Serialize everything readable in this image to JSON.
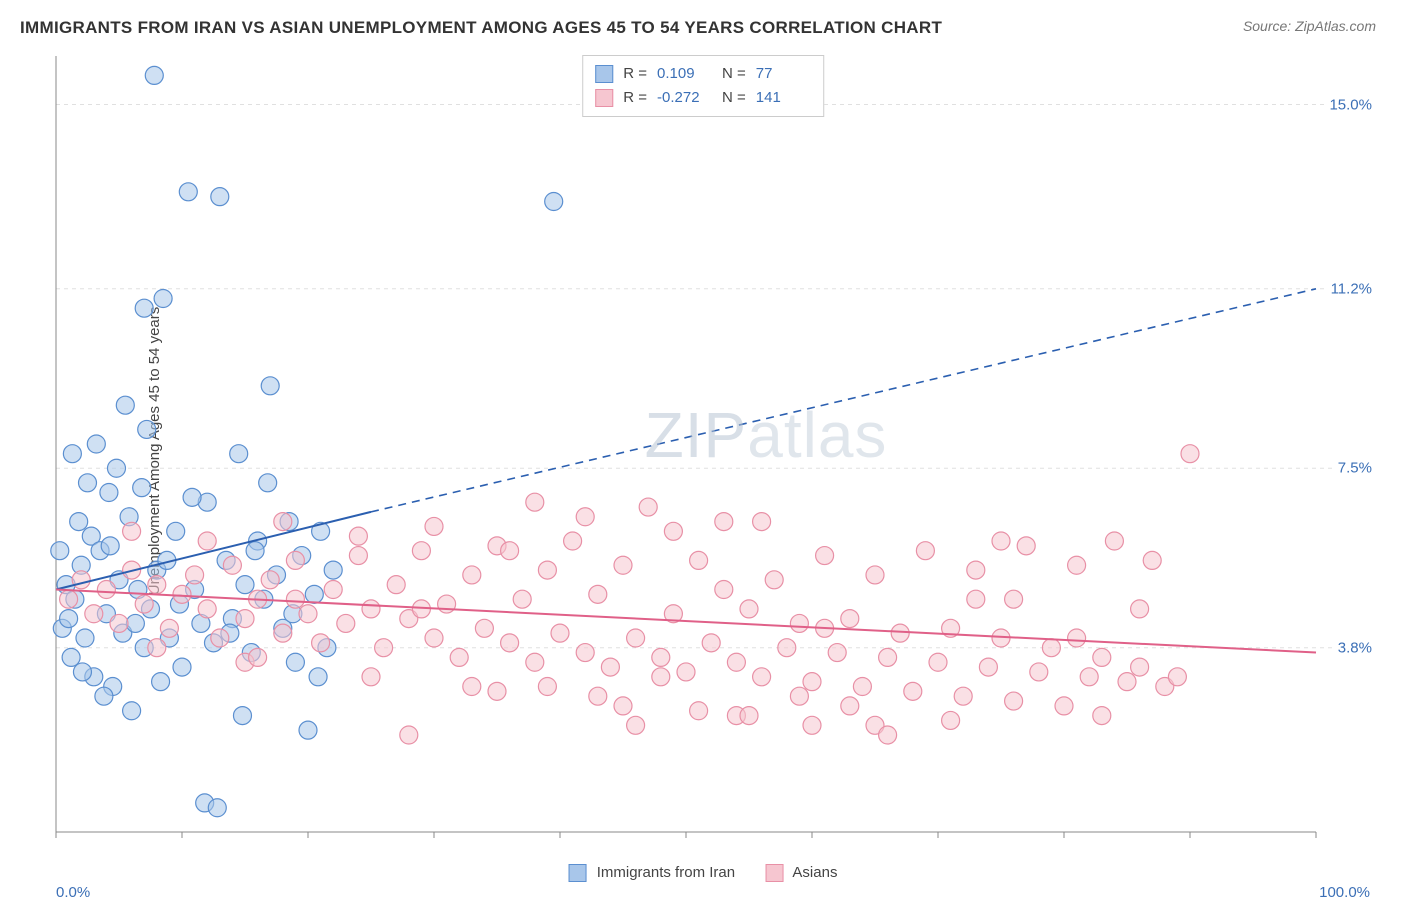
{
  "title": "IMMIGRANTS FROM IRAN VS ASIAN UNEMPLOYMENT AMONG AGES 45 TO 54 YEARS CORRELATION CHART",
  "source": "Source: ZipAtlas.com",
  "watermark_a": "ZIP",
  "watermark_b": "atlas",
  "chart": {
    "type": "scatter-with-regression",
    "x_axis": {
      "min": 0,
      "max": 100,
      "label_min": "0.0%",
      "label_max": "100.0%",
      "ticks": [
        0,
        10,
        20,
        30,
        40,
        50,
        60,
        70,
        80,
        90,
        100
      ]
    },
    "y_axis": {
      "min": 0,
      "max": 16,
      "label": "Unemployment Among Ages 45 to 54 years",
      "grid_values": [
        3.8,
        7.5,
        11.2,
        15.0
      ],
      "grid_labels": [
        "3.8%",
        "7.5%",
        "11.2%",
        "15.0%"
      ]
    },
    "background_color": "#ffffff",
    "grid_color": "#e0e0e0",
    "axis_color": "#888888",
    "marker_radius": 9,
    "marker_stroke_width": 1.2,
    "line_width": 2
  },
  "series": [
    {
      "name": "Immigrants from Iran",
      "color_fill": "#a8c6ea",
      "color_stroke": "#5b8fd0",
      "line_color": "#2b5fb0",
      "R": "0.109",
      "N": "77",
      "regression": {
        "x1": 0,
        "y1": 5.0,
        "x2_solid": 25,
        "y2_solid": 6.6,
        "x2_dash": 100,
        "y2_dash": 11.2
      },
      "points": [
        [
          0.5,
          4.2
        ],
        [
          0.8,
          5.1
        ],
        [
          1.2,
          3.6
        ],
        [
          1.5,
          4.8
        ],
        [
          2.0,
          5.5
        ],
        [
          2.3,
          4.0
        ],
        [
          2.8,
          6.1
        ],
        [
          3.0,
          3.2
        ],
        [
          3.5,
          5.8
        ],
        [
          4.0,
          4.5
        ],
        [
          4.2,
          7.0
        ],
        [
          4.5,
          3.0
        ],
        [
          5.0,
          5.2
        ],
        [
          5.3,
          4.1
        ],
        [
          5.8,
          6.5
        ],
        [
          6.0,
          2.5
        ],
        [
          6.5,
          5.0
        ],
        [
          7.0,
          3.8
        ],
        [
          7.2,
          8.3
        ],
        [
          7.5,
          4.6
        ],
        [
          8.0,
          5.4
        ],
        [
          8.5,
          11.0
        ],
        [
          9.0,
          4.0
        ],
        [
          9.5,
          6.2
        ],
        [
          10.0,
          3.4
        ],
        [
          7.8,
          15.6
        ],
        [
          10.5,
          13.2
        ],
        [
          11.0,
          5.0
        ],
        [
          11.5,
          4.3
        ],
        [
          12.0,
          6.8
        ],
        [
          13.0,
          13.1
        ],
        [
          12.5,
          3.9
        ],
        [
          13.5,
          5.6
        ],
        [
          14.0,
          4.4
        ],
        [
          14.5,
          7.8
        ],
        [
          15.0,
          5.1
        ],
        [
          15.5,
          3.7
        ],
        [
          16.0,
          6.0
        ],
        [
          16.5,
          4.8
        ],
        [
          17.0,
          9.2
        ],
        [
          17.5,
          5.3
        ],
        [
          18.0,
          4.2
        ],
        [
          18.5,
          6.4
        ],
        [
          19.0,
          3.5
        ],
        [
          19.5,
          5.7
        ],
        [
          20.0,
          2.1
        ],
        [
          20.5,
          4.9
        ],
        [
          21.0,
          6.2
        ],
        [
          21.5,
          3.8
        ],
        [
          22.0,
          5.4
        ],
        [
          2.5,
          7.2
        ],
        [
          3.2,
          8.0
        ],
        [
          4.8,
          7.5
        ],
        [
          1.8,
          6.4
        ],
        [
          0.3,
          5.8
        ],
        [
          1.0,
          4.4
        ],
        [
          5.5,
          8.8
        ],
        [
          6.8,
          7.1
        ],
        [
          8.3,
          3.1
        ],
        [
          9.8,
          4.7
        ],
        [
          11.8,
          0.6
        ],
        [
          12.8,
          0.5
        ],
        [
          14.8,
          2.4
        ],
        [
          16.8,
          7.2
        ],
        [
          3.8,
          2.8
        ],
        [
          7.0,
          10.8
        ],
        [
          1.3,
          7.8
        ],
        [
          2.1,
          3.3
        ],
        [
          4.3,
          5.9
        ],
        [
          6.3,
          4.3
        ],
        [
          8.8,
          5.6
        ],
        [
          10.8,
          6.9
        ],
        [
          13.8,
          4.1
        ],
        [
          15.8,
          5.8
        ],
        [
          18.8,
          4.5
        ],
        [
          20.8,
          3.2
        ],
        [
          39.5,
          13.0
        ]
      ]
    },
    {
      "name": "Asians",
      "color_fill": "#f6c6d0",
      "color_stroke": "#e890a6",
      "line_color": "#e06088",
      "R": "-0.272",
      "N": "141",
      "regression": {
        "x1": 0,
        "y1": 5.0,
        "x2_solid": 100,
        "y2_solid": 3.7,
        "x2_dash": 100,
        "y2_dash": 3.7
      },
      "points": [
        [
          1,
          4.8
        ],
        [
          2,
          5.2
        ],
        [
          3,
          4.5
        ],
        [
          4,
          5.0
        ],
        [
          5,
          4.3
        ],
        [
          6,
          5.4
        ],
        [
          7,
          4.7
        ],
        [
          8,
          5.1
        ],
        [
          9,
          4.2
        ],
        [
          10,
          4.9
        ],
        [
          11,
          5.3
        ],
        [
          12,
          4.6
        ],
        [
          13,
          4.0
        ],
        [
          14,
          5.5
        ],
        [
          15,
          4.4
        ],
        [
          16,
          4.8
        ],
        [
          17,
          5.2
        ],
        [
          18,
          4.1
        ],
        [
          19,
          5.6
        ],
        [
          20,
          4.5
        ],
        [
          21,
          3.9
        ],
        [
          22,
          5.0
        ],
        [
          23,
          4.3
        ],
        [
          24,
          5.7
        ],
        [
          25,
          4.6
        ],
        [
          26,
          3.8
        ],
        [
          27,
          5.1
        ],
        [
          28,
          4.4
        ],
        [
          29,
          5.8
        ],
        [
          30,
          4.0
        ],
        [
          31,
          4.7
        ],
        [
          32,
          3.6
        ],
        [
          33,
          5.3
        ],
        [
          34,
          4.2
        ],
        [
          35,
          5.9
        ],
        [
          36,
          3.9
        ],
        [
          37,
          4.8
        ],
        [
          38,
          3.5
        ],
        [
          39,
          5.4
        ],
        [
          40,
          4.1
        ],
        [
          41,
          6.0
        ],
        [
          42,
          3.7
        ],
        [
          43,
          4.9
        ],
        [
          44,
          3.4
        ],
        [
          45,
          5.5
        ],
        [
          46,
          4.0
        ],
        [
          47,
          6.7
        ],
        [
          48,
          3.6
        ],
        [
          49,
          4.5
        ],
        [
          50,
          3.3
        ],
        [
          51,
          5.6
        ],
        [
          52,
          3.9
        ],
        [
          53,
          6.4
        ],
        [
          54,
          3.5
        ],
        [
          55,
          4.6
        ],
        [
          56,
          3.2
        ],
        [
          57,
          5.2
        ],
        [
          58,
          3.8
        ],
        [
          59,
          4.3
        ],
        [
          60,
          3.1
        ],
        [
          61,
          5.7
        ],
        [
          62,
          3.7
        ],
        [
          63,
          4.4
        ],
        [
          64,
          3.0
        ],
        [
          65,
          5.3
        ],
        [
          66,
          3.6
        ],
        [
          67,
          4.1
        ],
        [
          68,
          2.9
        ],
        [
          69,
          5.8
        ],
        [
          70,
          3.5
        ],
        [
          71,
          4.2
        ],
        [
          72,
          2.8
        ],
        [
          73,
          5.4
        ],
        [
          74,
          3.4
        ],
        [
          75,
          4.0
        ],
        [
          76,
          2.7
        ],
        [
          77,
          5.9
        ],
        [
          78,
          3.3
        ],
        [
          79,
          3.8
        ],
        [
          80,
          2.6
        ],
        [
          81,
          5.5
        ],
        [
          82,
          3.2
        ],
        [
          83,
          3.6
        ],
        [
          84,
          6.0
        ],
        [
          85,
          3.1
        ],
        [
          86,
          3.4
        ],
        [
          87,
          5.6
        ],
        [
          88,
          3.0
        ],
        [
          89,
          3.2
        ],
        [
          90,
          7.8
        ],
        [
          6,
          6.2
        ],
        [
          12,
          6.0
        ],
        [
          18,
          6.4
        ],
        [
          24,
          6.1
        ],
        [
          30,
          6.3
        ],
        [
          36,
          5.8
        ],
        [
          42,
          6.5
        ],
        [
          48,
          3.2
        ],
        [
          54,
          2.4
        ],
        [
          60,
          2.2
        ],
        [
          15,
          3.5
        ],
        [
          25,
          3.2
        ],
        [
          35,
          2.9
        ],
        [
          45,
          2.6
        ],
        [
          55,
          2.4
        ],
        [
          65,
          2.2
        ],
        [
          75,
          6.0
        ],
        [
          8,
          3.8
        ],
        [
          16,
          3.6
        ],
        [
          28,
          2.0
        ],
        [
          38,
          6.8
        ],
        [
          46,
          2.2
        ],
        [
          56,
          6.4
        ],
        [
          66,
          2.0
        ],
        [
          76,
          4.8
        ],
        [
          86,
          4.6
        ],
        [
          51,
          2.5
        ],
        [
          61,
          4.2
        ],
        [
          71,
          2.3
        ],
        [
          81,
          4.0
        ],
        [
          33,
          3.0
        ],
        [
          43,
          2.8
        ],
        [
          53,
          5.0
        ],
        [
          63,
          2.6
        ],
        [
          73,
          4.8
        ],
        [
          83,
          2.4
        ],
        [
          19,
          4.8
        ],
        [
          29,
          4.6
        ],
        [
          39,
          3.0
        ],
        [
          49,
          6.2
        ],
        [
          59,
          2.8
        ]
      ]
    }
  ],
  "legend_bottom": [
    {
      "label": "Immigrants from Iran",
      "fill": "#a8c6ea",
      "stroke": "#5b8fd0"
    },
    {
      "label": "Asians",
      "fill": "#f6c6d0",
      "stroke": "#e890a6"
    }
  ]
}
